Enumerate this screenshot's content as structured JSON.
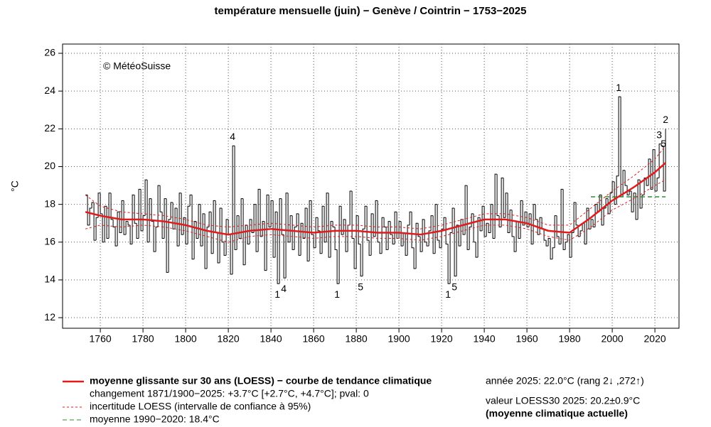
{
  "chart_data": {
    "type": "step",
    "title": "température mensuelle (juin) − Genève / Cointrin − 1753−2025",
    "ylabel": "°C",
    "credit": "© MétéoSuisse",
    "xlim": [
      1742.3,
      2031.3
    ],
    "ylim": [
      11.44,
      26.49
    ],
    "xticks": [
      1760,
      1780,
      1800,
      1820,
      1840,
      1860,
      1880,
      1900,
      1920,
      1940,
      1960,
      1980,
      2000,
      2020
    ],
    "yticks": [
      12,
      14,
      16,
      18,
      20,
      22,
      24,
      26
    ],
    "grid": true,
    "series": [
      {
        "color": "#000000",
        "x": [
          1753,
          1754,
          1755,
          1756,
          1757,
          1758,
          1759,
          1760,
          1761,
          1762,
          1763,
          1764,
          1765,
          1766,
          1767,
          1768,
          1769,
          1770,
          1771,
          1772,
          1773,
          1774,
          1775,
          1776,
          1777,
          1778,
          1779,
          1780,
          1781,
          1782,
          1783,
          1784,
          1785,
          1786,
          1787,
          1788,
          1789,
          1790,
          1791,
          1792,
          1793,
          1794,
          1795,
          1796,
          1797,
          1798,
          1799,
          1800,
          1801,
          1802,
          1803,
          1804,
          1805,
          1806,
          1807,
          1808,
          1809,
          1810,
          1811,
          1812,
          1813,
          1814,
          1815,
          1816,
          1817,
          1818,
          1819,
          1820,
          1821,
          1822,
          1823,
          1824,
          1825,
          1826,
          1827,
          1828,
          1829,
          1830,
          1831,
          1832,
          1833,
          1834,
          1835,
          1836,
          1837,
          1838,
          1839,
          1840,
          1841,
          1842,
          1843,
          1844,
          1845,
          1846,
          1847,
          1848,
          1849,
          1850,
          1851,
          1852,
          1853,
          1854,
          1855,
          1856,
          1857,
          1858,
          1859,
          1860,
          1861,
          1862,
          1863,
          1864,
          1865,
          1866,
          1867,
          1868,
          1869,
          1870,
          1871,
          1872,
          1873,
          1874,
          1875,
          1876,
          1877,
          1878,
          1879,
          1880,
          1881,
          1882,
          1883,
          1884,
          1885,
          1886,
          1887,
          1888,
          1889,
          1890,
          1891,
          1892,
          1893,
          1894,
          1895,
          1896,
          1897,
          1898,
          1899,
          1900,
          1901,
          1902,
          1903,
          1904,
          1905,
          1906,
          1907,
          1908,
          1909,
          1910,
          1911,
          1912,
          1913,
          1914,
          1915,
          1916,
          1917,
          1918,
          1919,
          1920,
          1921,
          1922,
          1923,
          1924,
          1925,
          1926,
          1927,
          1928,
          1929,
          1930,
          1931,
          1932,
          1933,
          1934,
          1935,
          1936,
          1937,
          1938,
          1939,
          1940,
          1941,
          1942,
          1943,
          1944,
          1945,
          1946,
          1947,
          1948,
          1949,
          1950,
          1951,
          1952,
          1953,
          1954,
          1955,
          1956,
          1957,
          1958,
          1959,
          1960,
          1961,
          1962,
          1963,
          1964,
          1965,
          1966,
          1967,
          1968,
          1969,
          1970,
          1971,
          1972,
          1973,
          1974,
          1975,
          1976,
          1977,
          1978,
          1979,
          1980,
          1981,
          1982,
          1983,
          1984,
          1985,
          1986,
          1987,
          1988,
          1989,
          1990,
          1991,
          1992,
          1993,
          1994,
          1995,
          1996,
          1997,
          1998,
          1999,
          2000,
          2001,
          2002,
          2003,
          2004,
          2005,
          2006,
          2007,
          2008,
          2009,
          2010,
          2011,
          2012,
          2013,
          2014,
          2015,
          2016,
          2017,
          2018,
          2019,
          2020,
          2021,
          2022,
          2023,
          2024,
          2025
        ],
        "values": [
          18.5,
          16.9,
          17.8,
          18.1,
          16.1,
          17.3,
          18.6,
          17.5,
          16.0,
          17.9,
          16.2,
          18.6,
          17.2,
          16.8,
          15.8,
          17.6,
          16.5,
          18.2,
          16.4,
          17.1,
          16.9,
          15.9,
          18.5,
          17.0,
          16.2,
          18.8,
          16.6,
          17.4,
          19.3,
          16.0,
          18.3,
          17.1,
          15.5,
          16.8,
          19.0,
          17.6,
          16.2,
          18.3,
          14.4,
          17.2,
          18.1,
          16.7,
          17.8,
          15.8,
          18.6,
          16.4,
          17.3,
          15.9,
          17.9,
          18.5,
          15.1,
          17.1,
          16.2,
          18.0,
          15.8,
          17.5,
          14.6,
          16.8,
          17.6,
          15.4,
          18.2,
          16.5,
          14.9,
          17.8,
          16.0,
          15.3,
          17.2,
          16.4,
          14.3,
          21.1,
          15.6,
          17.4,
          16.2,
          18.3,
          14.8,
          16.9,
          15.9,
          17.2,
          16.5,
          18.0,
          15.5,
          18.8,
          16.3,
          17.1,
          14.5,
          18.5,
          16.8,
          18.2,
          15.2,
          17.6,
          13.8,
          18.3,
          16.4,
          14.1,
          18.6,
          16.0,
          17.4,
          15.6,
          16.8,
          17.5,
          15.3,
          17.0,
          16.2,
          17.8,
          15.0,
          18.2,
          16.4,
          15.7,
          17.3,
          16.6,
          15.4,
          17.9,
          16.0,
          18.6,
          15.2,
          17.1,
          16.8,
          15.6,
          13.8,
          17.9,
          16.4,
          17.2,
          15.5,
          16.9,
          18.7,
          16.2,
          14.6,
          17.4,
          15.9,
          14.2,
          16.7,
          17.9,
          16.1,
          15.3,
          17.5,
          16.3,
          18.2,
          16.0,
          15.4,
          17.3,
          16.8,
          15.6,
          17.1,
          16.4,
          15.9,
          17.6,
          16.2,
          17.1,
          15.8,
          16.5,
          15.3,
          16.9,
          17.6,
          15.7,
          14.6,
          17.0,
          16.3,
          15.5,
          17.2,
          16.0,
          15.8,
          16.6,
          17.4,
          15.4,
          18.0,
          16.1,
          15.7,
          16.7,
          17.3,
          15.9,
          13.8,
          16.5,
          17.8,
          14.2,
          16.9,
          15.8,
          17.2,
          16.4,
          19.0,
          15.6,
          16.8,
          17.5,
          16.0,
          15.2,
          17.3,
          16.6,
          17.9,
          16.3,
          17.0,
          16.5,
          18.0,
          16.2,
          19.6,
          17.4,
          16.8,
          19.4,
          17.3,
          18.6,
          16.5,
          17.7,
          16.3,
          15.5,
          17.1,
          16.2,
          18.2,
          16.9,
          17.6,
          16.8,
          17.5,
          15.9,
          18.0,
          17.2,
          16.4,
          17.3,
          16.7,
          16.1,
          15.8,
          16.2,
          15.1,
          15.7,
          17.4,
          16.3,
          15.9,
          18.8,
          15.6,
          16.0,
          16.4,
          15.2,
          16.5,
          18.1,
          16.9,
          16.3,
          16.6,
          17.0,
          15.9,
          17.8,
          16.7,
          17.2,
          16.8,
          18.0,
          17.6,
          18.5,
          16.9,
          17.8,
          18.3,
          17.5,
          18.6,
          19.2,
          18.0,
          19.5,
          23.7,
          18.4,
          19.8,
          19.0,
          18.5,
          18.7,
          17.6,
          18.6,
          17.2,
          19.3,
          17.8,
          18.5,
          19.4,
          19.0,
          20.4,
          18.8,
          20.9,
          18.7,
          19.4,
          21.2,
          21.1,
          18.7,
          22.0
        ]
      }
    ],
    "loess": {
      "name": "moyenne glissante sur 30 ans (LOESS) − courbe de tendance climatique",
      "color": "#e31a1c",
      "x": [
        1753,
        1760,
        1770,
        1780,
        1790,
        1800,
        1810,
        1820,
        1830,
        1840,
        1850,
        1860,
        1870,
        1880,
        1890,
        1900,
        1910,
        1920,
        1930,
        1940,
        1950,
        1960,
        1970,
        1980,
        1990,
        2000,
        2010,
        2020,
        2025
      ],
      "values": [
        17.6,
        17.4,
        17.2,
        17.2,
        17.1,
        16.9,
        16.6,
        16.4,
        16.6,
        16.7,
        16.6,
        16.5,
        16.6,
        16.6,
        16.5,
        16.5,
        16.4,
        16.6,
        16.9,
        17.2,
        17.2,
        17.0,
        16.6,
        16.5,
        17.3,
        18.2,
        18.9,
        19.7,
        20.2
      ],
      "lower": [
        16.7,
        16.9,
        16.8,
        16.9,
        16.8,
        16.6,
        16.3,
        16.0,
        16.3,
        16.4,
        16.3,
        16.2,
        16.3,
        16.3,
        16.2,
        16.2,
        16.1,
        16.3,
        16.6,
        16.9,
        16.9,
        16.7,
        16.3,
        16.1,
        16.8,
        17.7,
        18.3,
        19.0,
        19.3
      ],
      "upper": [
        18.5,
        17.9,
        17.6,
        17.5,
        17.4,
        17.2,
        16.9,
        16.8,
        16.9,
        17.0,
        16.9,
        16.8,
        16.9,
        16.9,
        16.8,
        16.8,
        16.7,
        16.9,
        17.2,
        17.5,
        17.5,
        17.3,
        16.9,
        16.9,
        17.8,
        18.7,
        19.5,
        20.4,
        21.1
      ]
    },
    "loess_change": "changement 1871/1900−2025: +3.7°C [+2.7°C, +4.7°C]; pval: 0",
    "ci_legend": "incertitude LOESS (intervalle de confiance à 95%)",
    "reference": {
      "name": "moyenne 1990−2020: 18.4°C",
      "value": 18.4,
      "x": [
        1990,
        2025
      ],
      "color": "#2e8b2e"
    },
    "info": [
      "année 2025: 22.0°C (rang 2↓ ,272↑)",
      "valeur LOESS30 2025: 20.2±0.9°C",
      "(moyenne climatique actuelle)"
    ],
    "annotations": [
      {
        "text": "4",
        "x": 1822,
        "y": 21.1,
        "pos": "above"
      },
      {
        "text": "1",
        "x": 1843,
        "y": 13.8,
        "pos": "below"
      },
      {
        "text": "4",
        "x": 1846,
        "y": 14.1,
        "pos": "below"
      },
      {
        "text": "1",
        "x": 1871,
        "y": 13.8,
        "pos": "below"
      },
      {
        "text": "5",
        "x": 1882,
        "y": 14.2,
        "pos": "below"
      },
      {
        "text": "1",
        "x": 1923,
        "y": 13.8,
        "pos": "below"
      },
      {
        "text": "5",
        "x": 1926,
        "y": 14.2,
        "pos": "below"
      },
      {
        "text": "1",
        "x": 2003,
        "y": 23.7,
        "pos": "above"
      },
      {
        "text": "3",
        "x": 2022,
        "y": 21.2,
        "pos": "above"
      },
      {
        "text": "5",
        "x": 2023,
        "y": 21.1,
        "pos": "above-right"
      },
      {
        "text": "2",
        "x": 2025,
        "y": 22.0,
        "pos": "above"
      }
    ]
  }
}
